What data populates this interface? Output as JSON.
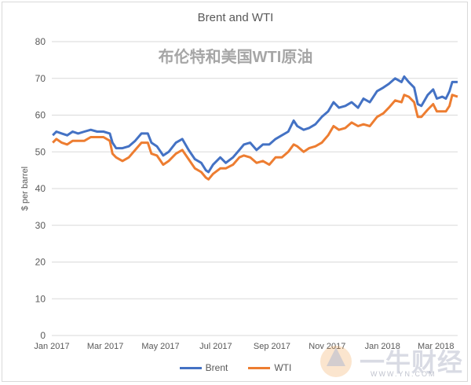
{
  "chart_data": {
    "type": "line",
    "title": "Brent and WTI",
    "overlay_title": "布伦特和美国WTI原油",
    "ylabel": "$ per barrel",
    "xlabel": "",
    "ylim": [
      0,
      80
    ],
    "yticks": [
      0,
      10,
      20,
      30,
      40,
      50,
      60,
      70,
      80
    ],
    "x_range": [
      "2017-01-01",
      "2018-03-25"
    ],
    "xticks": [
      {
        "date": "2017-01-01",
        "label": "Jan 2017"
      },
      {
        "date": "2017-03-01",
        "label": "Mar 2017"
      },
      {
        "date": "2017-05-01",
        "label": "May 2017"
      },
      {
        "date": "2017-07-01",
        "label": "Jul 2017"
      },
      {
        "date": "2017-09-01",
        "label": "Sep 2017"
      },
      {
        "date": "2017-11-01",
        "label": "Nov 2017"
      },
      {
        "date": "2018-01-01",
        "label": "Jan 2018"
      },
      {
        "date": "2018-03-01",
        "label": "Mar 2018"
      }
    ],
    "grid": "horizontal",
    "legend_position": "bottom",
    "series": [
      {
        "name": "Brent",
        "color": "#4472c4",
        "points": [
          [
            "2017-01-02",
            54.5
          ],
          [
            "2017-01-06",
            55.5
          ],
          [
            "2017-01-12",
            55.0
          ],
          [
            "2017-01-18",
            54.5
          ],
          [
            "2017-01-24",
            55.5
          ],
          [
            "2017-01-30",
            55.0
          ],
          [
            "2017-02-06",
            55.5
          ],
          [
            "2017-02-13",
            56.0
          ],
          [
            "2017-02-20",
            55.5
          ],
          [
            "2017-02-27",
            55.5
          ],
          [
            "2017-03-06",
            55.0
          ],
          [
            "2017-03-09",
            52.5
          ],
          [
            "2017-03-13",
            51.0
          ],
          [
            "2017-03-20",
            51.0
          ],
          [
            "2017-03-27",
            51.5
          ],
          [
            "2017-04-03",
            53.0
          ],
          [
            "2017-04-10",
            55.0
          ],
          [
            "2017-04-17",
            55.0
          ],
          [
            "2017-04-21",
            52.5
          ],
          [
            "2017-04-27",
            51.5
          ],
          [
            "2017-05-04",
            49.0
          ],
          [
            "2017-05-10",
            50.0
          ],
          [
            "2017-05-18",
            52.5
          ],
          [
            "2017-05-25",
            53.5
          ],
          [
            "2017-06-01",
            50.5
          ],
          [
            "2017-06-08",
            48.0
          ],
          [
            "2017-06-15",
            47.0
          ],
          [
            "2017-06-20",
            45.0
          ],
          [
            "2017-06-23",
            44.5
          ],
          [
            "2017-06-28",
            46.5
          ],
          [
            "2017-07-06",
            48.5
          ],
          [
            "2017-07-12",
            47.0
          ],
          [
            "2017-07-20",
            48.5
          ],
          [
            "2017-07-27",
            50.5
          ],
          [
            "2017-08-01",
            52.0
          ],
          [
            "2017-08-08",
            52.5
          ],
          [
            "2017-08-15",
            50.5
          ],
          [
            "2017-08-22",
            52.0
          ],
          [
            "2017-08-29",
            52.0
          ],
          [
            "2017-09-05",
            53.5
          ],
          [
            "2017-09-12",
            54.5
          ],
          [
            "2017-09-19",
            55.5
          ],
          [
            "2017-09-25",
            58.5
          ],
          [
            "2017-09-29",
            57.0
          ],
          [
            "2017-10-06",
            56.0
          ],
          [
            "2017-10-12",
            56.5
          ],
          [
            "2017-10-19",
            57.5
          ],
          [
            "2017-10-26",
            59.5
          ],
          [
            "2017-11-02",
            61.0
          ],
          [
            "2017-11-08",
            63.5
          ],
          [
            "2017-11-14",
            62.0
          ],
          [
            "2017-11-21",
            62.5
          ],
          [
            "2017-11-28",
            63.5
          ],
          [
            "2017-12-05",
            62.0
          ],
          [
            "2017-12-11",
            64.5
          ],
          [
            "2017-12-18",
            63.5
          ],
          [
            "2017-12-26",
            66.5
          ],
          [
            "2018-01-02",
            67.5
          ],
          [
            "2018-01-08",
            68.5
          ],
          [
            "2018-01-15",
            70.0
          ],
          [
            "2018-01-22",
            69.0
          ],
          [
            "2018-01-25",
            70.5
          ],
          [
            "2018-01-30",
            69.0
          ],
          [
            "2018-02-05",
            67.5
          ],
          [
            "2018-02-09",
            63.0
          ],
          [
            "2018-02-13",
            62.5
          ],
          [
            "2018-02-20",
            65.5
          ],
          [
            "2018-02-26",
            67.0
          ],
          [
            "2018-03-02",
            64.5
          ],
          [
            "2018-03-08",
            65.0
          ],
          [
            "2018-03-12",
            64.5
          ],
          [
            "2018-03-16",
            66.5
          ],
          [
            "2018-03-19",
            69.0
          ],
          [
            "2018-03-25",
            69.0
          ]
        ]
      },
      {
        "name": "WTI",
        "color": "#ed7d31",
        "points": [
          [
            "2017-01-02",
            52.5
          ],
          [
            "2017-01-06",
            53.5
          ],
          [
            "2017-01-12",
            52.5
          ],
          [
            "2017-01-18",
            52.0
          ],
          [
            "2017-01-24",
            53.0
          ],
          [
            "2017-01-30",
            53.0
          ],
          [
            "2017-02-06",
            53.0
          ],
          [
            "2017-02-13",
            54.0
          ],
          [
            "2017-02-20",
            54.0
          ],
          [
            "2017-02-27",
            54.0
          ],
          [
            "2017-03-06",
            53.0
          ],
          [
            "2017-03-09",
            49.5
          ],
          [
            "2017-03-13",
            48.5
          ],
          [
            "2017-03-20",
            47.5
          ],
          [
            "2017-03-27",
            48.5
          ],
          [
            "2017-04-03",
            50.5
          ],
          [
            "2017-04-10",
            52.5
          ],
          [
            "2017-04-17",
            52.5
          ],
          [
            "2017-04-21",
            49.5
          ],
          [
            "2017-04-27",
            49.0
          ],
          [
            "2017-05-04",
            46.5
          ],
          [
            "2017-05-10",
            47.5
          ],
          [
            "2017-05-18",
            49.5
          ],
          [
            "2017-05-25",
            50.5
          ],
          [
            "2017-06-01",
            48.0
          ],
          [
            "2017-06-08",
            45.5
          ],
          [
            "2017-06-15",
            44.5
          ],
          [
            "2017-06-20",
            43.0
          ],
          [
            "2017-06-23",
            42.5
          ],
          [
            "2017-06-28",
            44.0
          ],
          [
            "2017-07-06",
            45.5
          ],
          [
            "2017-07-12",
            45.5
          ],
          [
            "2017-07-20",
            46.5
          ],
          [
            "2017-07-27",
            48.5
          ],
          [
            "2017-08-01",
            49.0
          ],
          [
            "2017-08-08",
            48.5
          ],
          [
            "2017-08-15",
            47.0
          ],
          [
            "2017-08-22",
            47.5
          ],
          [
            "2017-08-29",
            46.5
          ],
          [
            "2017-09-05",
            48.5
          ],
          [
            "2017-09-12",
            48.5
          ],
          [
            "2017-09-19",
            50.0
          ],
          [
            "2017-09-25",
            52.0
          ],
          [
            "2017-09-29",
            51.5
          ],
          [
            "2017-10-06",
            50.0
          ],
          [
            "2017-10-12",
            51.0
          ],
          [
            "2017-10-19",
            51.5
          ],
          [
            "2017-10-26",
            52.5
          ],
          [
            "2017-11-02",
            54.5
          ],
          [
            "2017-11-08",
            57.0
          ],
          [
            "2017-11-14",
            56.0
          ],
          [
            "2017-11-21",
            56.5
          ],
          [
            "2017-11-28",
            58.0
          ],
          [
            "2017-12-05",
            57.0
          ],
          [
            "2017-12-11",
            57.5
          ],
          [
            "2017-12-18",
            57.0
          ],
          [
            "2017-12-26",
            59.5
          ],
          [
            "2018-01-02",
            60.5
          ],
          [
            "2018-01-08",
            62.0
          ],
          [
            "2018-01-15",
            64.0
          ],
          [
            "2018-01-22",
            63.5
          ],
          [
            "2018-01-25",
            65.5
          ],
          [
            "2018-01-30",
            65.0
          ],
          [
            "2018-02-05",
            63.5
          ],
          [
            "2018-02-09",
            59.5
          ],
          [
            "2018-02-13",
            59.5
          ],
          [
            "2018-02-20",
            61.5
          ],
          [
            "2018-02-26",
            63.0
          ],
          [
            "2018-03-02",
            61.0
          ],
          [
            "2018-03-08",
            61.0
          ],
          [
            "2018-03-12",
            61.0
          ],
          [
            "2018-03-16",
            62.5
          ],
          [
            "2018-03-19",
            65.5
          ],
          [
            "2018-03-25",
            65.0
          ]
        ]
      }
    ]
  },
  "watermark": {
    "text": "一牛财经",
    "url": "WWW.YN.COM"
  }
}
